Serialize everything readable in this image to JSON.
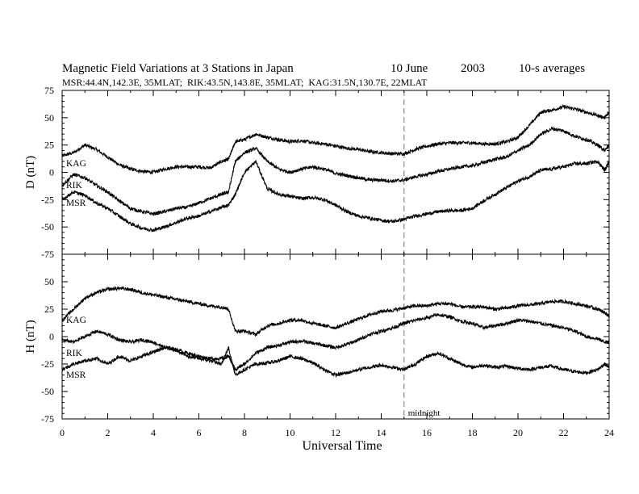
{
  "chart_data": {
    "type": "line",
    "title": {
      "main": "Magnetic Field Variations at 3 Stations in Japan",
      "date": "10 June",
      "year": "2003",
      "averaging": "10-s averages"
    },
    "subtitle": "MSR:44.4N,142.3E, 35MLAT;  RIK:43.5N,143.8E, 35MLAT;  KAG:31.5N,130.7E, 22MLAT",
    "xlabel": "Universal Time",
    "xlim": [
      0,
      24
    ],
    "xticks": [
      "0",
      "2",
      "4",
      "6",
      "8",
      "10",
      "12",
      "14",
      "16",
      "18",
      "20",
      "22",
      "24"
    ],
    "midnight": {
      "x": 15,
      "label": "midnight",
      "color": "#a0a0a0"
    },
    "panels": [
      {
        "ylabel": "D (nT)",
        "ylim": [
          -75,
          75
        ],
        "yticks": [
          "75",
          "50",
          "25",
          "0",
          "-25",
          "-50",
          "-75"
        ],
        "series": [
          {
            "name": "KAG",
            "x": [
              0,
              0.5,
              1,
              1.5,
              2,
              2.5,
              3,
              3.5,
              4,
              4.5,
              5,
              5.5,
              6,
              6.5,
              7,
              7.3,
              7.6,
              8,
              8.5,
              9,
              9.5,
              10,
              10.5,
              11,
              11.5,
              12,
              12.5,
              13,
              13.5,
              14,
              14.5,
              15,
              15.5,
              16,
              16.5,
              17,
              17.5,
              18,
              18.5,
              19,
              19.5,
              20,
              20.5,
              21,
              21.5,
              22,
              22.5,
              23,
              23.5,
              23.8,
              24
            ],
            "y": [
              15,
              18,
              25,
              21,
              14,
              7,
              3,
              1,
              0,
              3,
              5,
              5,
              5,
              4,
              10,
              12,
              28,
              30,
              35,
              32,
              30,
              28,
              29,
              27,
              26,
              24,
              22,
              21,
              19,
              18,
              17,
              17,
              21,
              24,
              26,
              27,
              27,
              27,
              26,
              26,
              28,
              32,
              43,
              55,
              57,
              60,
              58,
              55,
              52,
              50,
              55
            ]
          },
          {
            "name": "RIK",
            "x": [
              0,
              0.5,
              1,
              1.5,
              2,
              2.5,
              3,
              3.5,
              4,
              4.5,
              5,
              5.5,
              6,
              6.5,
              7,
              7.3,
              7.6,
              8,
              8.5,
              9,
              9.5,
              10,
              10.5,
              11,
              11.5,
              12,
              12.5,
              13,
              13.5,
              14,
              14.5,
              15,
              15.5,
              16,
              16.5,
              17,
              17.5,
              18,
              18.5,
              19,
              19.5,
              20,
              20.5,
              21,
              21.5,
              22,
              22.5,
              23,
              23.5,
              23.8,
              24
            ],
            "y": [
              -12,
              -2,
              -5,
              -12,
              -18,
              -26,
              -33,
              -36,
              -38,
              -36,
              -33,
              -32,
              -28,
              -24,
              -20,
              -18,
              10,
              18,
              22,
              10,
              3,
              0,
              3,
              5,
              3,
              -1,
              -3,
              -5,
              -7,
              -7,
              -8,
              -7,
              -4,
              -2,
              1,
              3,
              5,
              6,
              9,
              12,
              14,
              20,
              25,
              35,
              40,
              38,
              33,
              30,
              25,
              20,
              25
            ]
          },
          {
            "name": "MSR",
            "x": [
              0,
              0.5,
              1,
              1.5,
              2,
              2.5,
              3,
              3.5,
              4,
              4.5,
              5,
              5.5,
              6,
              6.5,
              7,
              7.3,
              7.6,
              8,
              8.5,
              9,
              9.5,
              10,
              10.5,
              11,
              11.5,
              12,
              12.5,
              13,
              13.5,
              14,
              14.5,
              15,
              15.5,
              16,
              16.5,
              17,
              17.5,
              18,
              18.5,
              19,
              19.5,
              20,
              20.5,
              21,
              21.5,
              22,
              22.5,
              23,
              23.5,
              23.8,
              24
            ],
            "y": [
              -25,
              -18,
              -21,
              -28,
              -33,
              -40,
              -47,
              -51,
              -53,
              -50,
              -46,
              -42,
              -40,
              -36,
              -32,
              -30,
              -20,
              0,
              10,
              -15,
              -20,
              -22,
              -24,
              -23,
              -25,
              -30,
              -36,
              -40,
              -42,
              -44,
              -45,
              -43,
              -40,
              -38,
              -36,
              -35,
              -35,
              -33,
              -26,
              -20,
              -14,
              -8,
              -4,
              2,
              3,
              5,
              8,
              8,
              10,
              2,
              10
            ]
          }
        ]
      },
      {
        "ylabel": "H (nT)",
        "ylim": [
          -75,
          75
        ],
        "yticks": [
          "75",
          "50",
          "25",
          "0",
          "-25",
          "-50",
          "-75"
        ],
        "series": [
          {
            "name": "KAG",
            "x": [
              0,
              0.5,
              1,
              1.5,
              2,
              2.5,
              3,
              3.5,
              4,
              4.5,
              5,
              5.5,
              6,
              6.5,
              7,
              7.3,
              7.6,
              8,
              8.5,
              9,
              9.5,
              10,
              10.5,
              11,
              11.5,
              12,
              12.5,
              13,
              13.5,
              14,
              14.5,
              15,
              15.5,
              16,
              16.5,
              17,
              17.5,
              18,
              18.5,
              19,
              19.5,
              20,
              20.5,
              21,
              21.5,
              22,
              22.5,
              23,
              23.5,
              23.8,
              24
            ],
            "y": [
              15,
              25,
              35,
              40,
              43,
              44,
              43,
              40,
              38,
              36,
              34,
              32,
              30,
              28,
              27,
              25,
              5,
              5,
              2,
              10,
              12,
              15,
              15,
              12,
              10,
              8,
              12,
              16,
              20,
              23,
              24,
              26,
              28,
              28,
              30,
              30,
              27,
              27,
              27,
              25,
              26,
              28,
              29,
              30,
              32,
              32,
              30,
              28,
              25,
              22,
              18
            ]
          },
          {
            "name": "RIK",
            "x": [
              0,
              0.5,
              1,
              1.5,
              2,
              2.5,
              3,
              3.5,
              4,
              4.5,
              5,
              5.5,
              6,
              6.5,
              7,
              7.3,
              7.6,
              8,
              8.5,
              9,
              9.5,
              10,
              10.5,
              11,
              11.5,
              12,
              12.5,
              13,
              13.5,
              14,
              14.5,
              15,
              15.5,
              16,
              16.5,
              17,
              17.5,
              18,
              18.5,
              19,
              19.5,
              20,
              20.5,
              21,
              21.5,
              22,
              22.5,
              23,
              23.5,
              23.8,
              24
            ],
            "y": [
              -3,
              -5,
              0,
              5,
              2,
              -3,
              -5,
              -3,
              -5,
              -10,
              -12,
              -15,
              -18,
              -20,
              -20,
              -18,
              -30,
              -25,
              -15,
              -10,
              -8,
              -5,
              -4,
              -6,
              -8,
              -10,
              -7,
              -3,
              2,
              5,
              8,
              12,
              15,
              17,
              20,
              18,
              14,
              12,
              8,
              10,
              12,
              15,
              14,
              12,
              10,
              8,
              5,
              0,
              -2,
              -5,
              -5
            ]
          },
          {
            "name": "MSR",
            "x": [
              0,
              0.5,
              1,
              1.5,
              2,
              2.5,
              3,
              3.5,
              4,
              4.5,
              5,
              5.5,
              6,
              6.5,
              7,
              7.3,
              7.6,
              8,
              8.5,
              9,
              9.5,
              10,
              10.5,
              11,
              11.5,
              12,
              12.5,
              13,
              13.5,
              14,
              14.5,
              15,
              15.5,
              16,
              16.5,
              17,
              17.5,
              18,
              18.5,
              19,
              19.5,
              20,
              20.5,
              21,
              21.5,
              22,
              22.5,
              23,
              23.5,
              23.8,
              24
            ],
            "y": [
              -30,
              -25,
              -22,
              -20,
              -25,
              -18,
              -22,
              -18,
              -14,
              -10,
              -12,
              -18,
              -20,
              -22,
              -25,
              -10,
              -35,
              -30,
              -25,
              -24,
              -22,
              -18,
              -20,
              -24,
              -30,
              -35,
              -33,
              -30,
              -28,
              -26,
              -28,
              -30,
              -25,
              -18,
              -15,
              -20,
              -25,
              -28,
              -26,
              -28,
              -27,
              -29,
              -30,
              -28,
              -27,
              -30,
              -32,
              -33,
              -30,
              -25,
              -28
            ]
          }
        ]
      }
    ]
  }
}
